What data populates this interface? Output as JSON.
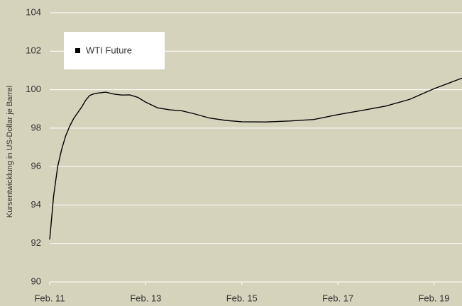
{
  "chart_data": {
    "type": "line",
    "y_label": "Kursentwicklung in US-Dollar je Barrel",
    "x": [
      "2011-02",
      "2011-03",
      "2011-04",
      "2011-05",
      "2011-06",
      "2011-07",
      "2011-08",
      "2011-09",
      "2011-10",
      "2011-11",
      "2011-12",
      "2012-01",
      "2012-02",
      "2012-04",
      "2012-06",
      "2012-08",
      "2012-10",
      "2012-12",
      "2013-02",
      "2013-05",
      "2013-08",
      "2013-11",
      "2014-02",
      "2014-06",
      "2014-10",
      "2015-02",
      "2015-08",
      "2016-02",
      "2016-08",
      "2017-02",
      "2017-08",
      "2018-02",
      "2018-08",
      "2019-02",
      "2019-09"
    ],
    "series": [
      {
        "name": "WTI Future",
        "color": "#000000",
        "values": [
          92.2,
          94.5,
          96.0,
          96.9,
          97.6,
          98.1,
          98.5,
          98.8,
          99.1,
          99.45,
          99.7,
          99.78,
          99.82,
          99.87,
          99.77,
          99.72,
          99.73,
          99.6,
          99.35,
          99.05,
          98.95,
          98.9,
          98.75,
          98.52,
          98.4,
          98.33,
          98.32,
          98.37,
          98.45,
          98.7,
          98.92,
          99.15,
          99.5,
          100.05,
          100.6
        ]
      }
    ],
    "xlim": [
      "2011-02",
      "2019-09"
    ],
    "xticks": [
      {
        "value": "2011-02",
        "label": "Feb. 11"
      },
      {
        "value": "2013-02",
        "label": "Feb. 13"
      },
      {
        "value": "2015-02",
        "label": "Feb. 15"
      },
      {
        "value": "2017-02",
        "label": "Feb. 17"
      },
      {
        "value": "2019-02",
        "label": "Feb. 19"
      }
    ],
    "ylim": [
      90,
      104
    ],
    "yticks": [
      90,
      92,
      94,
      96,
      98,
      100,
      102,
      104
    ],
    "grid": true,
    "legend": "upper left"
  }
}
